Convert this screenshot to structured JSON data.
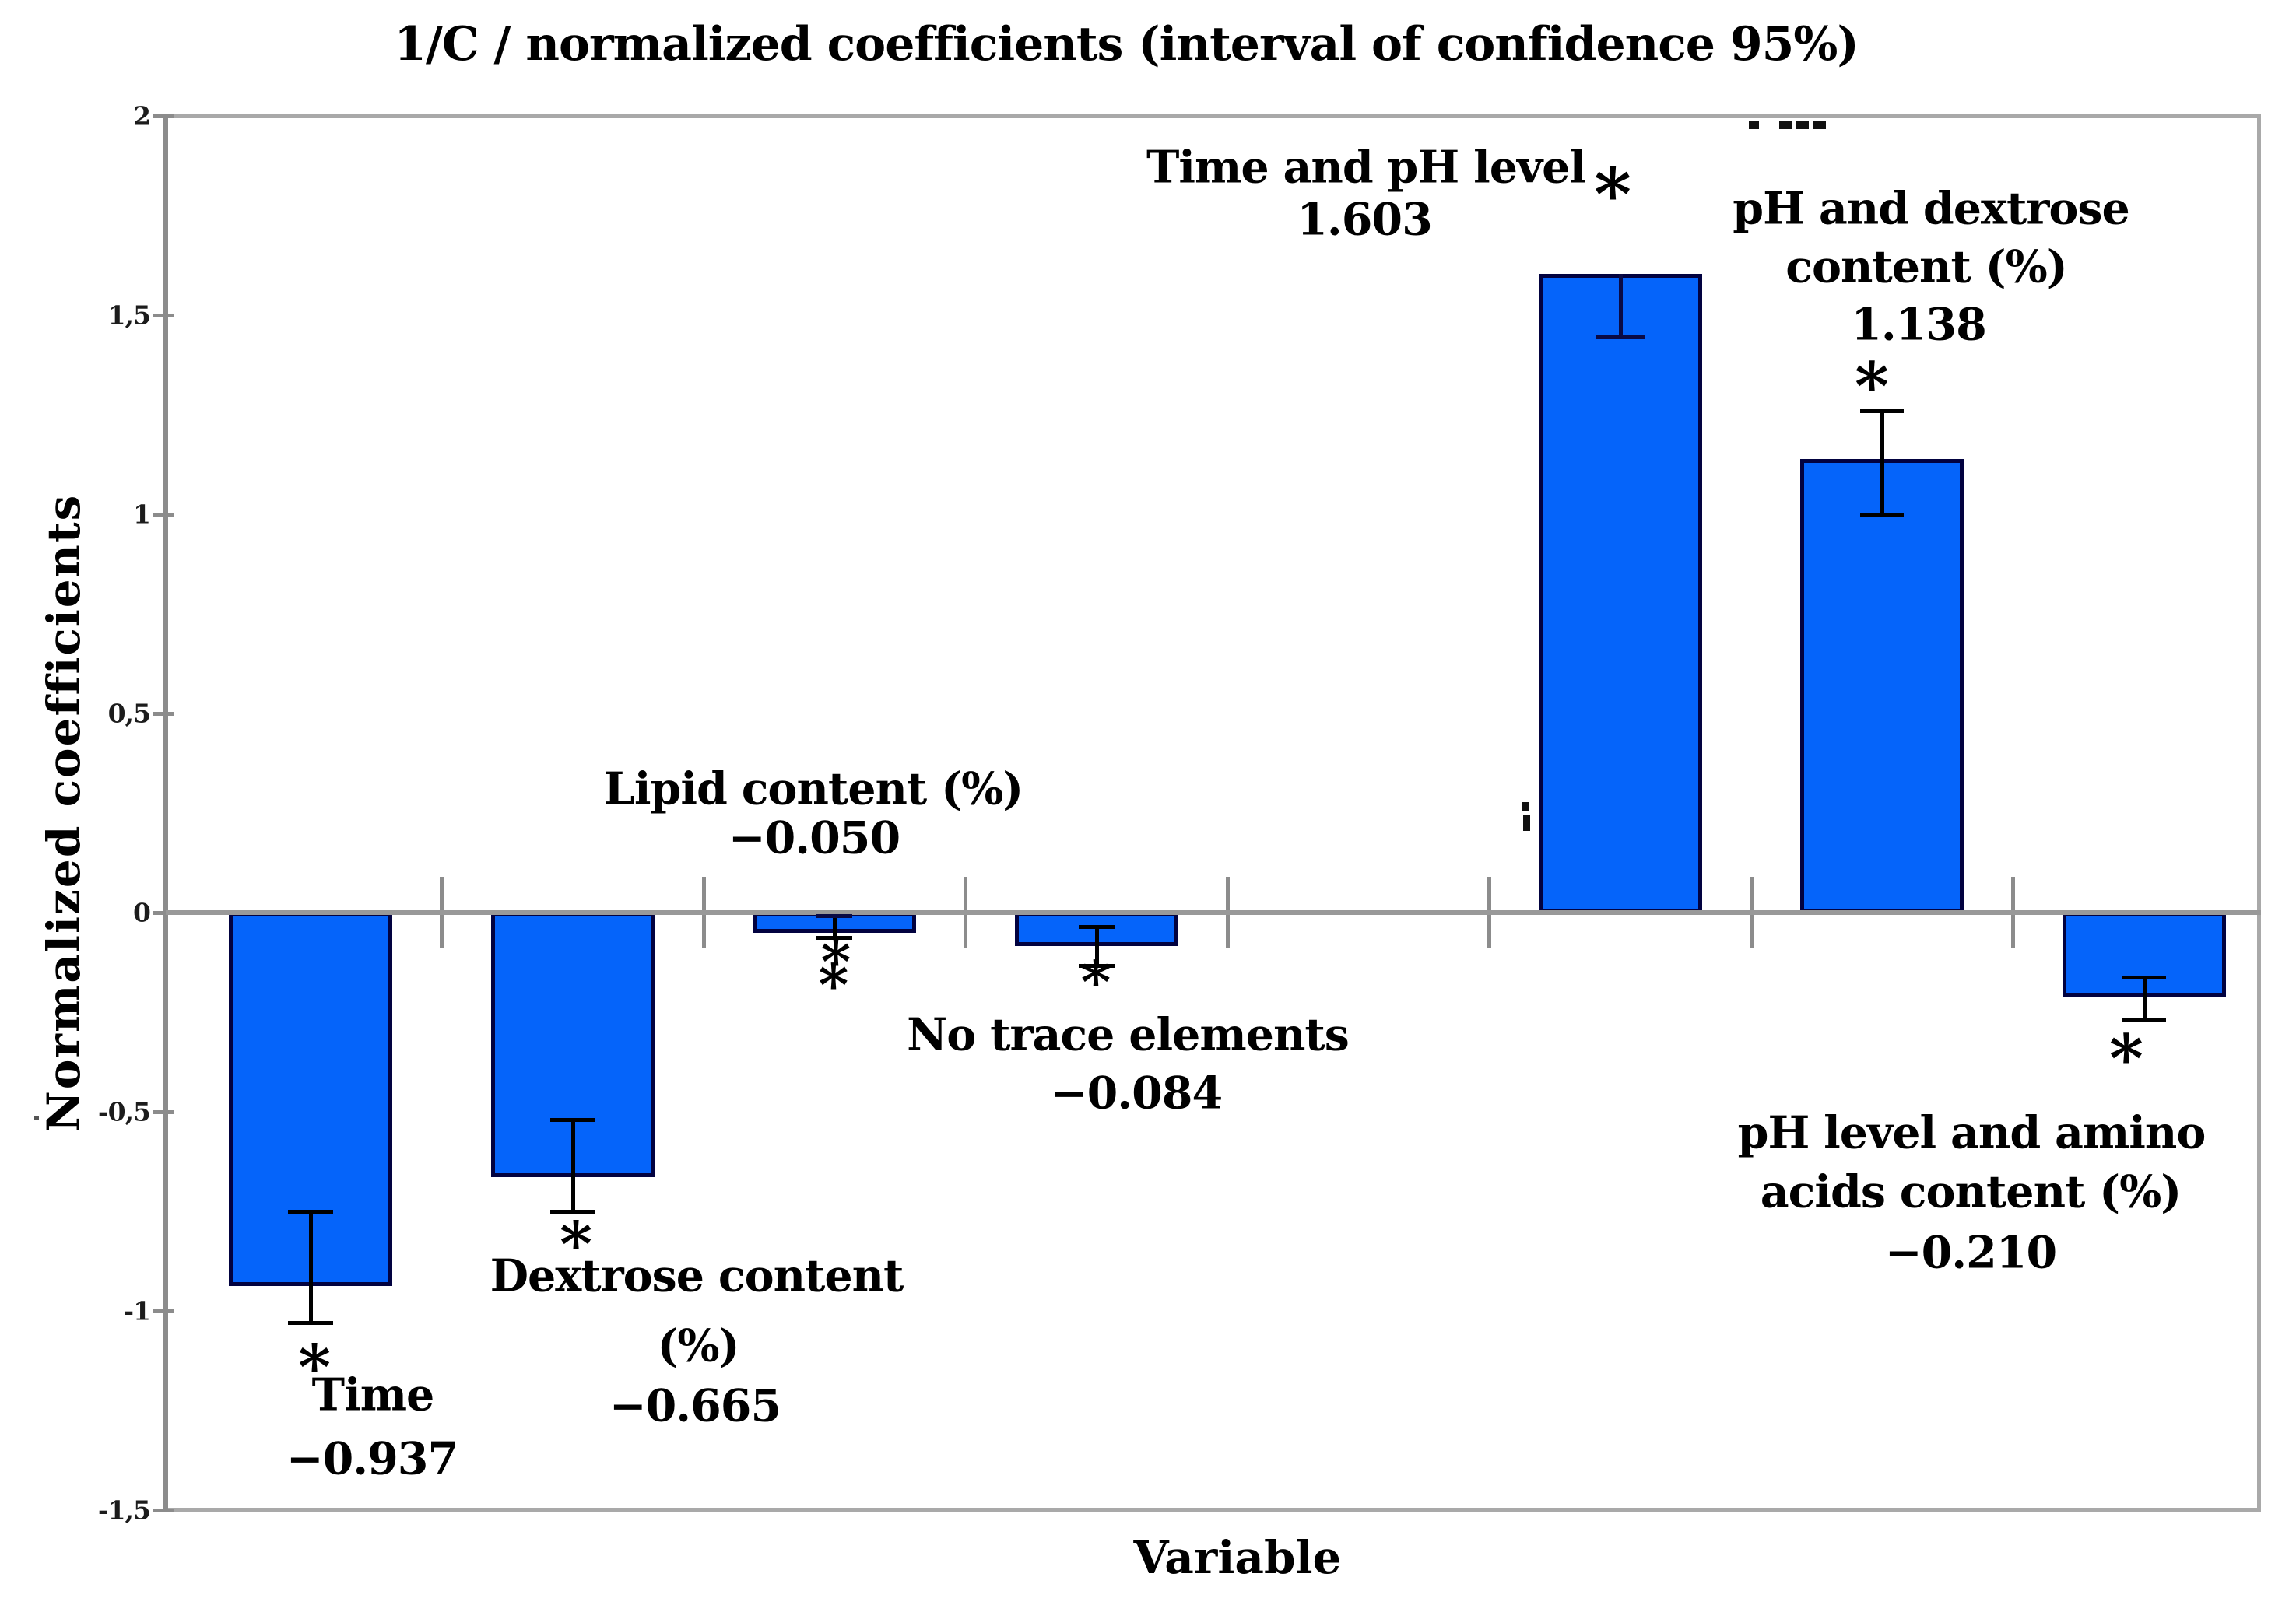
{
  "chart_data": {
    "type": "bar",
    "title": "1/C / normalized coefficients (interval of confidence 95%)",
    "xlabel": "Variable",
    "ylabel": "Normalized coefficients",
    "ylim": [
      -1.5,
      2
    ],
    "ytick_step": 0.5,
    "ytick_values": [
      2,
      1.5,
      1,
      0.5,
      0,
      -0.5,
      -1,
      -1.5
    ],
    "ytick_labels": [
      "2",
      "1,5",
      "1",
      "0,5",
      "0",
      "-0,5",
      "-1",
      "-1,5"
    ],
    "grid": false,
    "legend": "none",
    "bar_color": "#0564FA",
    "bar_border_color": "#020240",
    "categories": [
      "Time",
      "Dextrose content (%)",
      "Lipid content (%)",
      "No trace elements",
      "",
      "Time and pH level",
      "pH and dextrose content (%)",
      "pH level and amino acids content (%)"
    ],
    "values": [
      -0.937,
      -0.665,
      -0.05,
      -0.084,
      null,
      1.603,
      1.138,
      -0.21
    ],
    "error_whiskers": [
      [
        -1.03,
        -0.75
      ],
      [
        -0.75,
        -0.52
      ],
      [
        -0.062,
        -0.008
      ],
      [
        -0.133,
        -0.036
      ],
      null,
      [
        1.445,
        1.603
      ],
      [
        1.0,
        1.26
      ],
      [
        -0.27,
        -0.162
      ]
    ],
    "significance_marker": "*",
    "annotations": [
      {
        "lines": [
          "Time",
          "−0.937"
        ]
      },
      {
        "lines": [
          "Dextrose content",
          "(%)",
          "−0.665"
        ]
      },
      {
        "lines": [
          "Lipid content (%)",
          "−0.050"
        ]
      },
      {
        "lines": [
          "No trace elements",
          "−0.084"
        ]
      },
      null,
      {
        "lines": [
          "Time and pH level",
          "1.603"
        ]
      },
      {
        "lines": [
          "pH and dextrose",
          "content (%)",
          "1.138"
        ]
      },
      {
        "lines": [
          "pH level and amino",
          "acids content (%)",
          "−0.210"
        ]
      }
    ],
    "artifacts": {
      "top_dots": "· ···",
      "stray_mark": "¡",
      "margin_dot": "."
    }
  }
}
